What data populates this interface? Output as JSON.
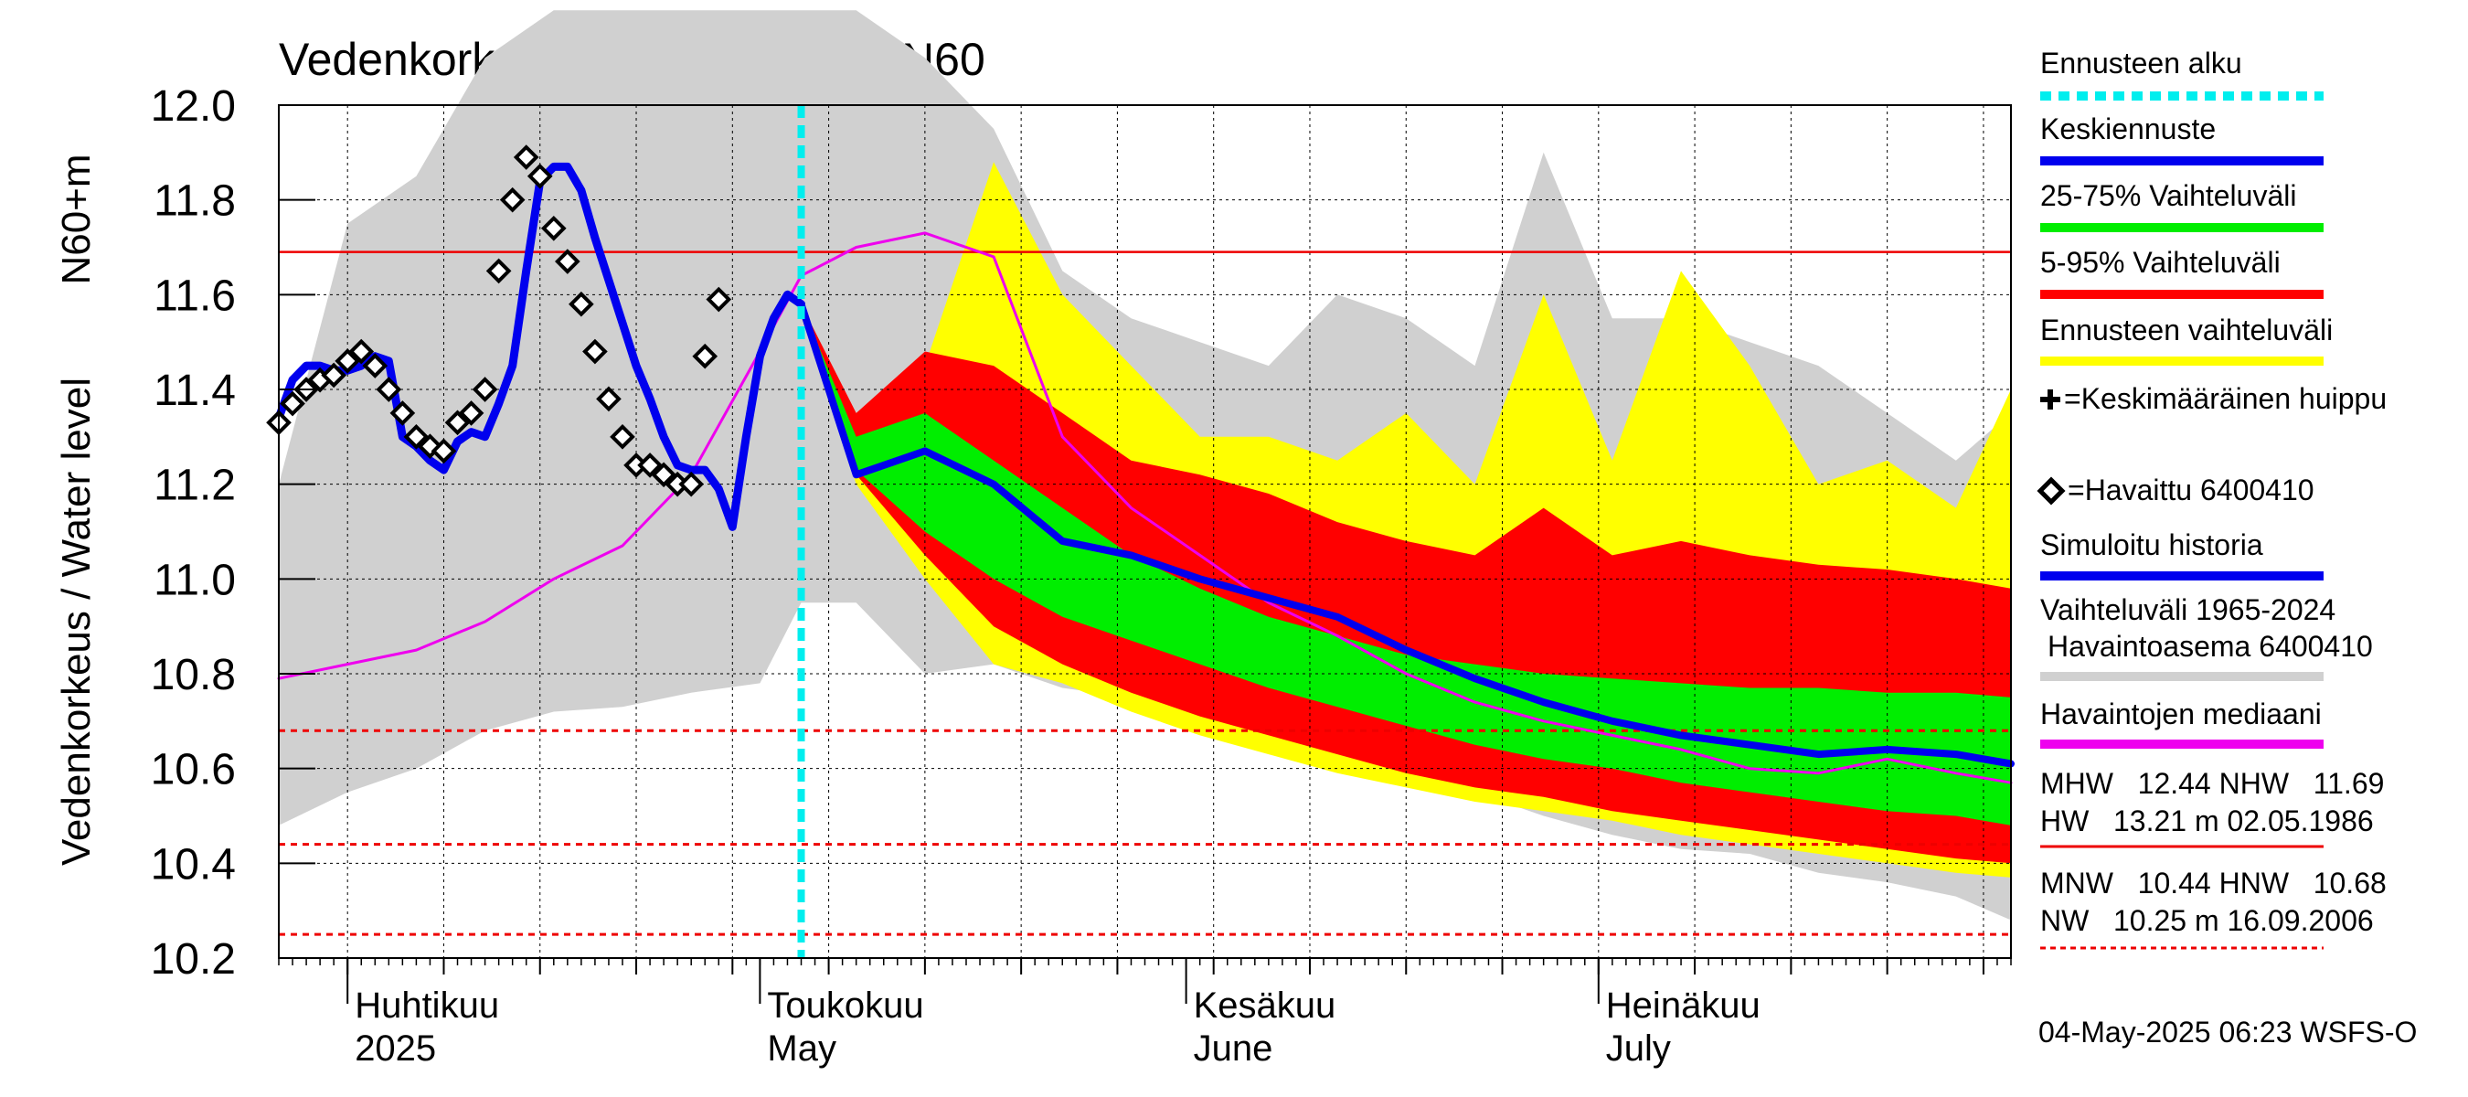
{
  "chart_data": {
    "type": "line",
    "title": "Vedenkorkeus, 6400410 Simo N60",
    "ylabel_top": "N60+m",
    "ylabel_main": "Vedenkorkeus / Water level",
    "ylim": [
      10.2,
      12.0
    ],
    "y_ticks": [
      10.2,
      10.4,
      10.6,
      10.8,
      11.0,
      11.2,
      11.4,
      11.6,
      11.8,
      12.0
    ],
    "y_tick_labels": [
      "10.2",
      "10.4",
      "10.6",
      "10.8",
      "11.0",
      "11.2",
      "11.4",
      "11.6",
      "11.8",
      "12.0"
    ],
    "x_range": [
      "2025-03-27",
      "2025-07-31"
    ],
    "month_labels": [
      {
        "date": "2025-04-01",
        "fi": "Huhtikuu",
        "en": "2025"
      },
      {
        "date": "2025-05-01",
        "fi": "Toukokuu",
        "en": "May"
      },
      {
        "date": "2025-06-01",
        "fi": "Kesäkuu",
        "en": "June"
      },
      {
        "date": "2025-07-01",
        "fi": "Heinäkuu",
        "en": "July"
      }
    ],
    "forecast_start": "2025-05-04",
    "reference_lines": [
      {
        "name": "NHW",
        "value": 11.69,
        "style": "solid",
        "color": "#ee0000"
      },
      {
        "name": "HNW",
        "value": 10.68,
        "style": "dashed",
        "color": "#ee0000"
      },
      {
        "name": "MNW",
        "value": 10.44,
        "style": "dashed",
        "color": "#ee0000"
      },
      {
        "name": "NW",
        "value": 10.25,
        "style": "dashed",
        "color": "#ee0000"
      }
    ],
    "x_dates": [
      "2025-03-27",
      "2025-04-01",
      "2025-04-06",
      "2025-04-11",
      "2025-04-16",
      "2025-04-21",
      "2025-04-26",
      "2025-05-01",
      "2025-05-04",
      "2025-05-08",
      "2025-05-13",
      "2025-05-18",
      "2025-05-23",
      "2025-05-28",
      "2025-06-02",
      "2025-06-07",
      "2025-06-12",
      "2025-06-17",
      "2025-06-22",
      "2025-06-27",
      "2025-07-02",
      "2025-07-07",
      "2025-07-12",
      "2025-07-17",
      "2025-07-22",
      "2025-07-27",
      "2025-07-31"
    ],
    "historical_range": {
      "name": "Vaihteluväli 1965-2024 Havaintoasema 6400410",
      "color": "#d0d0d0",
      "low": [
        10.48,
        10.55,
        10.6,
        10.68,
        10.72,
        10.73,
        10.76,
        10.78,
        10.95,
        10.95,
        10.8,
        10.82,
        10.77,
        10.75,
        10.73,
        10.67,
        10.62,
        10.58,
        10.55,
        10.5,
        10.46,
        10.43,
        10.42,
        10.38,
        10.36,
        10.33,
        10.28
      ],
      "high": [
        11.2,
        11.75,
        11.85,
        12.1,
        12.2,
        12.2,
        12.2,
        12.2,
        12.2,
        12.2,
        12.1,
        11.95,
        11.65,
        11.55,
        11.5,
        11.45,
        11.6,
        11.55,
        11.45,
        11.9,
        11.55,
        11.55,
        11.5,
        11.45,
        11.35,
        11.25,
        11.35
      ]
    },
    "forecast_range": {
      "name": "Ennusteen vaihteluväli",
      "color": "#ffff00",
      "low": [
        null,
        null,
        null,
        null,
        null,
        null,
        null,
        null,
        11.58,
        11.2,
        11.0,
        10.82,
        10.78,
        10.72,
        10.67,
        10.63,
        10.59,
        10.56,
        10.53,
        10.51,
        10.49,
        10.46,
        10.44,
        10.42,
        10.4,
        10.38,
        10.37
      ],
      "high": [
        null,
        null,
        null,
        null,
        null,
        null,
        null,
        null,
        11.58,
        11.33,
        11.45,
        11.88,
        11.6,
        11.45,
        11.3,
        11.3,
        11.25,
        11.35,
        11.2,
        11.6,
        11.25,
        11.65,
        11.45,
        11.2,
        11.25,
        11.15,
        11.4
      ]
    },
    "range_5_95": {
      "name": "5-95% Vaihteluväli",
      "color": "#ff0000",
      "low": [
        null,
        null,
        null,
        null,
        null,
        null,
        null,
        null,
        11.58,
        11.22,
        11.05,
        10.9,
        10.82,
        10.76,
        10.71,
        10.67,
        10.63,
        10.59,
        10.56,
        10.54,
        10.51,
        10.49,
        10.47,
        10.45,
        10.43,
        10.41,
        10.4
      ],
      "high": [
        null,
        null,
        null,
        null,
        null,
        null,
        null,
        null,
        11.58,
        11.35,
        11.48,
        11.45,
        11.35,
        11.25,
        11.22,
        11.18,
        11.12,
        11.08,
        11.05,
        11.15,
        11.05,
        11.08,
        11.05,
        11.03,
        11.02,
        11.0,
        10.98
      ]
    },
    "range_25_75": {
      "name": "25-75% Vaihteluväli",
      "color": "#00ee00",
      "low": [
        null,
        null,
        null,
        null,
        null,
        null,
        null,
        null,
        11.58,
        11.23,
        11.1,
        11.0,
        10.92,
        10.87,
        10.82,
        10.77,
        10.73,
        10.69,
        10.65,
        10.62,
        10.6,
        10.57,
        10.55,
        10.53,
        10.51,
        10.5,
        10.48
      ],
      "high": [
        null,
        null,
        null,
        null,
        null,
        null,
        null,
        null,
        11.58,
        11.3,
        11.35,
        11.25,
        11.15,
        11.05,
        10.98,
        10.92,
        10.88,
        10.84,
        10.82,
        10.8,
        10.79,
        10.78,
        10.77,
        10.77,
        10.76,
        10.76,
        10.75
      ]
    },
    "series": [
      {
        "name": "Keskiennuste",
        "color": "#0000ee",
        "values": [
          null,
          null,
          null,
          null,
          null,
          null,
          null,
          null,
          11.58,
          11.22,
          11.27,
          11.2,
          11.08,
          11.05,
          11.0,
          10.96,
          10.92,
          10.85,
          10.79,
          10.74,
          10.7,
          10.67,
          10.65,
          10.63,
          10.64,
          10.63,
          10.61
        ]
      },
      {
        "name": "Havaintojen mediaani",
        "color": "#ee00ee",
        "values": [
          10.79,
          10.82,
          10.85,
          10.91,
          11.0,
          11.07,
          11.22,
          11.48,
          11.64,
          11.7,
          11.73,
          11.68,
          11.3,
          11.15,
          11.05,
          10.95,
          10.88,
          10.8,
          10.74,
          10.7,
          10.67,
          10.64,
          10.6,
          10.59,
          10.62,
          10.59,
          10.57
        ]
      }
    ],
    "simulated_history": {
      "name": "Simuloitu historia",
      "color": "#0000ee",
      "x_dates": [
        "2025-03-27",
        "2025-03-28",
        "2025-03-29",
        "2025-03-30",
        "2025-03-31",
        "2025-04-01",
        "2025-04-02",
        "2025-04-03",
        "2025-04-04",
        "2025-04-05",
        "2025-04-06",
        "2025-04-07",
        "2025-04-08",
        "2025-04-09",
        "2025-04-10",
        "2025-04-11",
        "2025-04-12",
        "2025-04-13",
        "2025-04-14",
        "2025-04-15",
        "2025-04-16",
        "2025-04-17",
        "2025-04-18",
        "2025-04-19",
        "2025-04-20",
        "2025-04-21",
        "2025-04-22",
        "2025-04-23",
        "2025-04-24",
        "2025-04-25",
        "2025-04-26",
        "2025-04-27",
        "2025-04-28",
        "2025-04-29",
        "2025-04-30",
        "2025-05-01",
        "2025-05-02",
        "2025-05-03",
        "2025-05-04"
      ],
      "values": [
        11.34,
        11.42,
        11.45,
        11.45,
        11.44,
        11.44,
        11.45,
        11.47,
        11.46,
        11.3,
        11.28,
        11.25,
        11.23,
        11.29,
        11.31,
        11.3,
        11.37,
        11.45,
        11.65,
        11.84,
        11.87,
        11.87,
        11.82,
        11.72,
        11.63,
        11.54,
        11.45,
        11.38,
        11.3,
        11.24,
        11.23,
        11.23,
        11.19,
        11.11,
        11.3,
        11.47,
        11.55,
        11.6,
        11.58
      ]
    },
    "observed": {
      "name": "Havaittu 6400410",
      "marker": "diamond",
      "x_dates": [
        "2025-03-27",
        "2025-03-28",
        "2025-03-29",
        "2025-03-30",
        "2025-03-31",
        "2025-04-01",
        "2025-04-02",
        "2025-04-03",
        "2025-04-04",
        "2025-04-05",
        "2025-04-06",
        "2025-04-07",
        "2025-04-08",
        "2025-04-09",
        "2025-04-10",
        "2025-04-11",
        "2025-04-12",
        "2025-04-13",
        "2025-04-14",
        "2025-04-15",
        "2025-04-16",
        "2025-04-17",
        "2025-04-18",
        "2025-04-19",
        "2025-04-20",
        "2025-04-21",
        "2025-04-22",
        "2025-04-23",
        "2025-04-24",
        "2025-04-25",
        "2025-04-26",
        "2025-04-27",
        "2025-04-28",
        "2025-04-29",
        "2025-04-30",
        "2025-05-01",
        "2025-05-02",
        "2025-05-03",
        "2025-05-04"
      ],
      "values": [
        11.33,
        11.37,
        11.4,
        11.42,
        11.43,
        11.46,
        11.48,
        11.45,
        11.4,
        11.35,
        11.3,
        11.28,
        11.27,
        11.33,
        11.35,
        11.4,
        11.65,
        11.8,
        11.89,
        11.85,
        11.74,
        11.67,
        11.58,
        11.48,
        11.38,
        11.3,
        11.24,
        11.24,
        11.22,
        11.2,
        11.2,
        11.47,
        11.59,
        null,
        null,
        null,
        null,
        null,
        null
      ]
    },
    "legend": [
      {
        "label": "Ennusteen alku",
        "color": "#00eeee",
        "style": "dotted"
      },
      {
        "label": "Keskiennuste",
        "color": "#0000ee",
        "style": "solid"
      },
      {
        "label": "25-75% Vaihteluväli",
        "color": "#00ee00",
        "style": "solid"
      },
      {
        "label": "5-95% Vaihteluväli",
        "color": "#ff0000",
        "style": "solid"
      },
      {
        "label": "Ennusteen vaihteluväli",
        "color": "#ffff00",
        "style": "solid"
      },
      {
        "label": "=Keskimääräinen huippu",
        "color": "#000000",
        "style": "plus"
      },
      {
        "label": "=Havaittu 6400410",
        "color": "#000000",
        "style": "diamond"
      },
      {
        "label": "Simuloitu historia",
        "color": "#0000ee",
        "style": "solid"
      },
      {
        "label": "Vaihteluväli 1965-2024 Havaintoasema 6400410",
        "color": "#d0d0d0",
        "style": "solid"
      },
      {
        "label": "Havaintojen mediaani",
        "color": "#ee00ee",
        "style": "solid"
      }
    ],
    "stats": {
      "line1": "MHW   12.44 NHW   11.69",
      "line2": "HW   13.21 m 02.05.1986",
      "line3": "MNW   10.44 HNW   10.68",
      "line4": "NW   10.25 m 16.09.2006"
    },
    "timestamp": "04-May-2025 06:23 WSFS-O",
    "grid": true,
    "legend_placement": "right"
  }
}
